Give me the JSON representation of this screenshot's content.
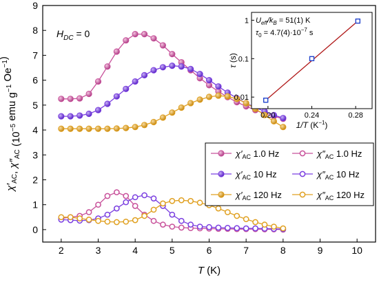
{
  "chart_data": [
    {
      "type": "scatter",
      "title": "",
      "xlabel": "T (K)",
      "ylabel": "χ′AC, χ″AC (10⁻⁵ emu g⁻¹ Oe⁻¹)",
      "xlim": [
        1.5,
        10.5
      ],
      "ylim": [
        -0.5,
        9
      ],
      "xticks": [
        2,
        3,
        4,
        5,
        6,
        7,
        8,
        9,
        10
      ],
      "yticks": [
        0,
        1,
        2,
        3,
        4,
        5,
        6,
        7,
        8,
        9
      ],
      "grid": false,
      "legend_position": "right",
      "annotation": "HDC = 0",
      "series": [
        {
          "name": "χ′AC 1.0 Hz",
          "color": "#c8509a",
          "filled": true,
          "x": [
            2.0,
            2.25,
            2.5,
            2.75,
            3.0,
            3.25,
            3.5,
            3.75,
            4.0,
            4.25,
            4.5,
            4.75,
            5.0,
            5.25,
            5.5,
            5.75,
            6.0,
            6.25,
            6.5,
            6.75,
            7.0,
            7.25,
            7.5,
            7.75,
            8.0
          ],
          "y": [
            5.25,
            5.25,
            5.27,
            5.45,
            5.95,
            6.55,
            7.15,
            7.6,
            7.85,
            7.85,
            7.68,
            7.4,
            7.05,
            6.72,
            6.4,
            6.08,
            5.8,
            5.55,
            5.32,
            5.12,
            4.95,
            4.8,
            4.66,
            4.55,
            4.45
          ]
        },
        {
          "name": "χ″AC 1.0 Hz",
          "color": "#c8509a",
          "filled": false,
          "x": [
            2.0,
            2.25,
            2.5,
            2.75,
            3.0,
            3.25,
            3.5,
            3.75,
            4.0,
            4.25,
            4.5,
            4.75,
            5.0,
            5.25,
            5.5,
            5.75,
            6.0,
            6.25,
            6.5,
            6.75,
            7.0,
            7.25,
            7.5,
            7.75,
            8.0
          ],
          "y": [
            0.45,
            0.5,
            0.55,
            0.7,
            1.0,
            1.35,
            1.5,
            1.35,
            0.95,
            0.6,
            0.35,
            0.2,
            0.12,
            0.08,
            0.06,
            0.05,
            0.04,
            0.03,
            0.03,
            0.02,
            0.02,
            0.02,
            0.01,
            0.01,
            0.0
          ]
        },
        {
          "name": "χ′AC 10 Hz",
          "color": "#7a3ee0",
          "filled": true,
          "x": [
            2.0,
            2.25,
            2.5,
            2.75,
            3.0,
            3.25,
            3.5,
            3.75,
            4.0,
            4.25,
            4.5,
            4.75,
            5.0,
            5.25,
            5.5,
            5.75,
            6.0,
            6.25,
            6.5,
            6.75,
            7.0,
            7.25,
            7.5,
            7.75,
            8.0
          ],
          "y": [
            4.55,
            4.55,
            4.58,
            4.65,
            4.8,
            5.05,
            5.35,
            5.65,
            5.95,
            6.2,
            6.4,
            6.52,
            6.58,
            6.55,
            6.45,
            6.25,
            6.0,
            5.75,
            5.5,
            5.28,
            5.08,
            4.9,
            4.75,
            4.6,
            4.48
          ]
        },
        {
          "name": "χ″AC 10 Hz",
          "color": "#7a3ee0",
          "filled": false,
          "x": [
            2.0,
            2.25,
            2.5,
            2.75,
            3.0,
            3.25,
            3.5,
            3.75,
            4.0,
            4.25,
            4.5,
            4.75,
            5.0,
            5.25,
            5.5,
            5.75,
            6.0,
            6.25,
            6.5,
            6.75,
            7.0,
            7.25,
            7.5,
            7.75,
            8.0
          ],
          "y": [
            0.4,
            0.38,
            0.36,
            0.38,
            0.45,
            0.6,
            0.85,
            1.1,
            1.3,
            1.38,
            1.25,
            0.95,
            0.6,
            0.35,
            0.2,
            0.12,
            0.1,
            0.08,
            0.07,
            0.06,
            0.05,
            0.05,
            0.04,
            0.03,
            0.02
          ]
        },
        {
          "name": "χ′AC 120 Hz",
          "color": "#e0a020",
          "filled": true,
          "x": [
            2.0,
            2.25,
            2.5,
            2.75,
            3.0,
            3.25,
            3.5,
            3.75,
            4.0,
            4.25,
            4.5,
            4.75,
            5.0,
            5.25,
            5.5,
            5.75,
            6.0,
            6.25,
            6.5,
            6.75,
            7.0,
            7.25,
            7.5,
            7.75,
            8.0
          ],
          "y": [
            4.05,
            4.05,
            4.05,
            4.05,
            4.05,
            4.05,
            4.06,
            4.08,
            4.12,
            4.2,
            4.32,
            4.5,
            4.7,
            4.9,
            5.08,
            5.22,
            5.33,
            5.38,
            5.35,
            5.25,
            5.08,
            4.85,
            4.6,
            4.35,
            4.12
          ]
        },
        {
          "name": "χ″AC 120 Hz",
          "color": "#e0a020",
          "filled": false,
          "x": [
            2.0,
            2.25,
            2.5,
            2.75,
            3.0,
            3.25,
            3.5,
            3.75,
            4.0,
            4.25,
            4.5,
            4.75,
            5.0,
            5.25,
            5.5,
            5.75,
            6.0,
            6.25,
            6.5,
            6.75,
            7.0,
            7.25,
            7.5,
            7.75,
            8.0
          ],
          "y": [
            0.5,
            0.5,
            0.45,
            0.4,
            0.35,
            0.32,
            0.3,
            0.32,
            0.38,
            0.55,
            0.8,
            1.05,
            1.15,
            1.18,
            1.15,
            1.08,
            0.98,
            0.85,
            0.7,
            0.55,
            0.42,
            0.3,
            0.2,
            0.12,
            0.05
          ]
        }
      ]
    },
    {
      "type": "scatter",
      "title": "",
      "xlabel": "1/T (K⁻¹)",
      "ylabel": "τ (s)",
      "xlim": [
        0.185,
        0.295
      ],
      "yscale": "log",
      "ylim": [
        0.005,
        1.6
      ],
      "xticks": [
        0.2,
        0.24,
        0.28
      ],
      "xtick_labels": [
        "0.20",
        "0.24",
        "0.28"
      ],
      "yticks": [
        0.01,
        0.1,
        1
      ],
      "ytick_labels": [
        "0.01",
        "0.1",
        "1"
      ],
      "annotations": [
        "Ueff/kB = 51(1) K",
        "τ0 = 4.7(4)·10⁻⁷ s"
      ],
      "points": {
        "x": [
          0.198,
          0.24,
          0.282
        ],
        "y": [
          0.0083,
          0.1,
          0.95
        ],
        "color": "#2244cc"
      },
      "fit_line": {
        "x": [
          0.198,
          0.282
        ],
        "y": [
          0.0083,
          0.95
        ],
        "color": "#b01818"
      }
    }
  ],
  "legend": {
    "entries": [
      {
        "sym": "χ′",
        "sub": "AC",
        "freq": "1.0 Hz",
        "color": "#c8509a",
        "filled": true
      },
      {
        "sym": "χ″",
        "sub": "AC",
        "freq": "1.0 Hz",
        "color": "#c8509a",
        "filled": false
      },
      {
        "sym": "χ′",
        "sub": "AC",
        "freq": "10 Hz",
        "color": "#7a3ee0",
        "filled": true
      },
      {
        "sym": "χ″",
        "sub": "AC",
        "freq": "10 Hz",
        "color": "#7a3ee0",
        "filled": false
      },
      {
        "sym": "χ′",
        "sub": "AC",
        "freq": "120 Hz",
        "color": "#e0a020",
        "filled": true
      },
      {
        "sym": "χ″",
        "sub": "AC",
        "freq": "120 Hz",
        "color": "#e0a020",
        "filled": false
      }
    ]
  }
}
